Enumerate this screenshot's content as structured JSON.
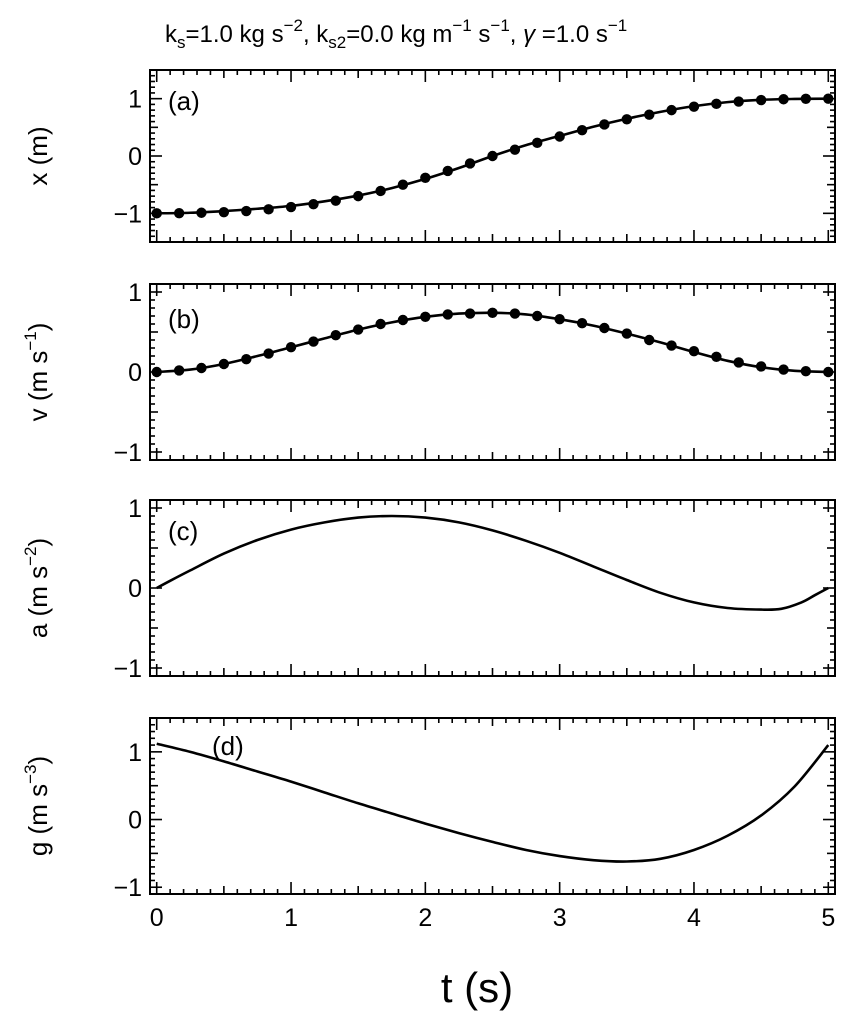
{
  "title": {
    "ks_sym": "k",
    "ks_sub": "s",
    "ks_val": "=1.0 kg s",
    "ks_exp": "−2",
    "sep1": ", ",
    "ks2_sym": "k",
    "ks2_sub": "s2",
    "ks2_val": "=0.0 kg m",
    "ks2_exp1": "−1",
    "ks2_mid": " s",
    "ks2_exp2": "−1",
    "sep2": ",  ",
    "gamma_sym": "γ",
    "gamma_val": " =1.0 s",
    "gamma_exp": "−1"
  },
  "xlabel": "t (s)",
  "chart_data": [
    {
      "type": "line",
      "panel_label": "(a)",
      "ylabel_main": "x (m)",
      "ylabel_exp": "",
      "ylabel_close": "",
      "xlim": [
        -0.05,
        5.05
      ],
      "ylim": [
        -1.5,
        1.5
      ],
      "x_ticks": [
        0,
        1,
        2,
        3,
        4,
        5
      ],
      "y_ticks": [
        -1,
        0,
        1
      ],
      "y_tick_labels": [
        "−1",
        "0",
        "1"
      ],
      "series": [
        {
          "style": "line",
          "x": [
            0,
            0.25,
            0.5,
            0.75,
            1,
            1.25,
            1.5,
            1.75,
            2,
            2.25,
            2.5,
            2.75,
            3,
            3.25,
            3.5,
            3.75,
            4,
            4.25,
            4.5,
            4.75,
            5
          ],
          "y": [
            -1.0,
            -0.99,
            -0.96,
            -0.92,
            -0.87,
            -0.79,
            -0.69,
            -0.56,
            -0.4,
            -0.21,
            0.0,
            0.19,
            0.35,
            0.51,
            0.65,
            0.77,
            0.87,
            0.94,
            0.98,
            0.995,
            1.0
          ]
        },
        {
          "style": "markers",
          "x": [
            0,
            0.167,
            0.333,
            0.5,
            0.667,
            0.833,
            1.0,
            1.167,
            1.333,
            1.5,
            1.667,
            1.833,
            2.0,
            2.167,
            2.333,
            2.5,
            2.667,
            2.833,
            3.0,
            3.167,
            3.333,
            3.5,
            3.667,
            3.833,
            4.0,
            4.167,
            4.333,
            4.5,
            4.667,
            4.833,
            5.0
          ],
          "y": [
            -1.0,
            -0.998,
            -0.99,
            -0.98,
            -0.96,
            -0.93,
            -0.89,
            -0.84,
            -0.78,
            -0.7,
            -0.61,
            -0.5,
            -0.38,
            -0.26,
            -0.13,
            0.0,
            0.11,
            0.23,
            0.34,
            0.45,
            0.55,
            0.64,
            0.72,
            0.8,
            0.86,
            0.91,
            0.95,
            0.975,
            0.99,
            0.998,
            1.0
          ]
        }
      ]
    },
    {
      "type": "line",
      "panel_label": "(b)",
      "ylabel_main": "v (m s",
      "ylabel_exp": "−1",
      "ylabel_close": ")",
      "xlim": [
        -0.05,
        5.05
      ],
      "ylim": [
        -1.1,
        1.1
      ],
      "x_ticks": [
        0,
        1,
        2,
        3,
        4,
        5
      ],
      "y_ticks": [
        -1,
        0,
        1
      ],
      "y_tick_labels": [
        "−1",
        "0",
        "1"
      ],
      "series": [
        {
          "style": "line",
          "x": [
            0,
            0.25,
            0.5,
            0.75,
            1,
            1.25,
            1.5,
            1.75,
            2,
            2.25,
            2.5,
            2.75,
            3,
            3.25,
            3.5,
            3.75,
            4,
            4.25,
            4.5,
            4.75,
            5
          ],
          "y": [
            0.0,
            0.03,
            0.1,
            0.2,
            0.31,
            0.42,
            0.53,
            0.62,
            0.69,
            0.73,
            0.74,
            0.72,
            0.66,
            0.58,
            0.48,
            0.37,
            0.25,
            0.14,
            0.06,
            0.015,
            0.0
          ]
        },
        {
          "style": "markers",
          "x": [
            0,
            0.167,
            0.333,
            0.5,
            0.667,
            0.833,
            1.0,
            1.167,
            1.333,
            1.5,
            1.667,
            1.833,
            2.0,
            2.167,
            2.333,
            2.5,
            2.667,
            2.833,
            3.0,
            3.167,
            3.333,
            3.5,
            3.667,
            3.833,
            4.0,
            4.167,
            4.333,
            4.5,
            4.667,
            4.833,
            5.0
          ],
          "y": [
            0.0,
            0.02,
            0.05,
            0.1,
            0.16,
            0.23,
            0.31,
            0.38,
            0.46,
            0.53,
            0.6,
            0.65,
            0.69,
            0.72,
            0.73,
            0.74,
            0.73,
            0.7,
            0.66,
            0.61,
            0.55,
            0.48,
            0.4,
            0.33,
            0.26,
            0.19,
            0.12,
            0.07,
            0.03,
            0.01,
            0.0
          ]
        }
      ]
    },
    {
      "type": "line",
      "panel_label": "(c)",
      "ylabel_main": "a (m s",
      "ylabel_exp": "−2",
      "ylabel_close": ")",
      "xlim": [
        -0.05,
        5.05
      ],
      "ylim": [
        -1.1,
        1.1
      ],
      "x_ticks": [
        0,
        1,
        2,
        3,
        4,
        5
      ],
      "y_ticks": [
        -1,
        0,
        1
      ],
      "y_tick_labels": [
        "−1",
        "0",
        "1"
      ],
      "series": [
        {
          "style": "line",
          "x": [
            0,
            0.1,
            0.25,
            0.5,
            0.75,
            1.0,
            1.25,
            1.5,
            1.75,
            2.0,
            2.25,
            2.5,
            2.75,
            3.0,
            3.25,
            3.5,
            3.75,
            4.0,
            4.25,
            4.5,
            4.65,
            4.8,
            4.9,
            5.0
          ],
          "y": [
            0.0,
            0.09,
            0.22,
            0.43,
            0.6,
            0.73,
            0.82,
            0.88,
            0.9,
            0.88,
            0.82,
            0.72,
            0.59,
            0.44,
            0.27,
            0.1,
            -0.06,
            -0.18,
            -0.25,
            -0.27,
            -0.26,
            -0.18,
            -0.09,
            0.0
          ]
        }
      ]
    },
    {
      "type": "line",
      "panel_label": "(d)",
      "ylabel_main": "g (m s",
      "ylabel_exp": "−3",
      "ylabel_close": ")",
      "xlim": [
        -0.05,
        5.05
      ],
      "ylim": [
        -1.1,
        1.5
      ],
      "x_ticks": [
        0,
        1,
        2,
        3,
        4,
        5
      ],
      "y_ticks": [
        -1,
        0,
        1
      ],
      "y_tick_labels": [
        "−1",
        "0",
        "1"
      ],
      "x_tick_labels": [
        "0",
        "1",
        "2",
        "3",
        "4",
        "5"
      ],
      "series": [
        {
          "style": "line",
          "x": [
            0,
            0.25,
            0.5,
            0.75,
            1.0,
            1.25,
            1.5,
            1.75,
            2.0,
            2.25,
            2.5,
            2.75,
            3.0,
            3.25,
            3.5,
            3.75,
            4.0,
            4.25,
            4.5,
            4.75,
            5.0
          ],
          "y": [
            1.12,
            1.0,
            0.86,
            0.71,
            0.56,
            0.4,
            0.24,
            0.09,
            -0.06,
            -0.2,
            -0.33,
            -0.45,
            -0.54,
            -0.6,
            -0.62,
            -0.58,
            -0.45,
            -0.24,
            0.06,
            0.49,
            1.1
          ]
        }
      ]
    }
  ]
}
